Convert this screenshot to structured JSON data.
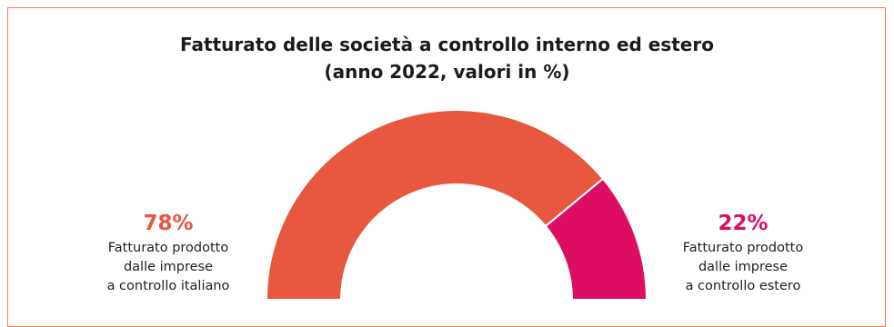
{
  "chart_data": {
    "type": "pie",
    "title_line1": "Fatturato delle società a controllo interno ed estero",
    "title_line2": "(anno 2022, valori in %)",
    "series": [
      {
        "value": 78,
        "label": "78%",
        "description_lines": [
          "Fatturato prodotto",
          "dalle imprese",
          "a controllo italiano"
        ],
        "color": "#e8573f"
      },
      {
        "value": 22,
        "label": "22%",
        "description_lines": [
          "Fatturato prodotto",
          "dalle imprese",
          "a controllo estero"
        ],
        "color": "#dc0d63"
      }
    ]
  },
  "colors": {
    "border": "#ef7a5d",
    "title": "#1b1b1b",
    "text": "#1f1f1f"
  }
}
